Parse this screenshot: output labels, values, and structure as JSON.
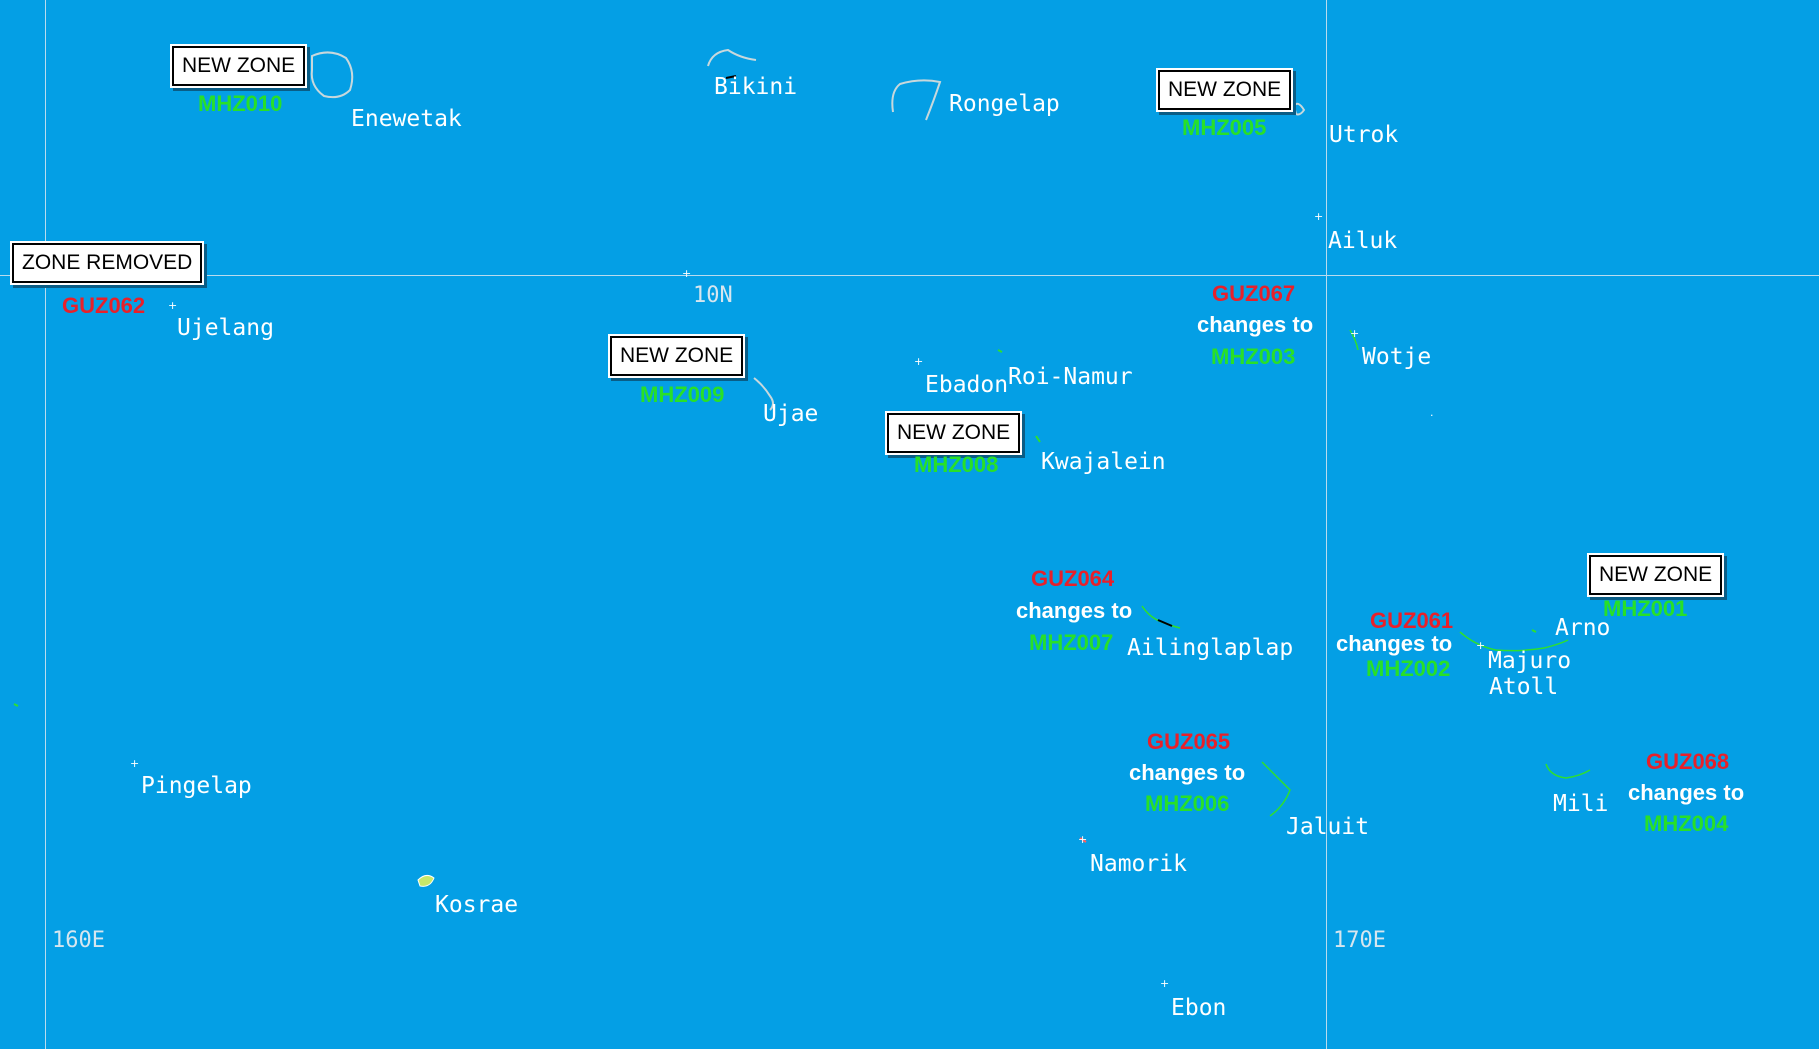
{
  "grid": {
    "lat_label": "10N",
    "lon_labels": [
      "160E",
      "170E"
    ]
  },
  "places": {
    "enewetak": "Enewetak",
    "bikini": "Bikini",
    "rongelap": "Rongelap",
    "utrok": "Utrok",
    "ailuk": "Ailuk",
    "ujelang": "Ujelang",
    "wotje": "Wotje",
    "ebadon": "Ebadon",
    "roi_namur": "Roi-Namur",
    "ujae": "Ujae",
    "kwajalein": "Kwajalein",
    "ailinglaplap": "Ailinglaplap",
    "arno": "Arno",
    "majuro": "Majuro",
    "atoll": "Atoll",
    "pingelap": "Pingelap",
    "mili": "Mili",
    "jaluit": "Jaluit",
    "namorik": "Namorik",
    "kosrae": "Kosrae",
    "ebon": "Ebon"
  },
  "zones": {
    "mhz010": {
      "label": "NEW ZONE",
      "code": "MHZ010"
    },
    "mhz005": {
      "label": "NEW ZONE",
      "code": "MHZ005"
    },
    "guz062": {
      "label": "ZONE REMOVED",
      "code": "GUZ062"
    },
    "mhz009": {
      "label": "NEW ZONE",
      "code": "MHZ009"
    },
    "mhz008": {
      "label": "NEW ZONE",
      "code": "MHZ008"
    },
    "mhz001": {
      "label": "NEW ZONE",
      "code": "MHZ001"
    },
    "guz067": {
      "old": "GUZ067",
      "changes": "changes to",
      "new": "MHZ003"
    },
    "guz064": {
      "old": "GUZ064",
      "changes": "changes to",
      "new": "MHZ007"
    },
    "guz061": {
      "old": "GUZ061",
      "changes": "changes to",
      "new": "MHZ002"
    },
    "guz065": {
      "old": "GUZ065",
      "changes": "changes to",
      "new": "MHZ006"
    },
    "guz068": {
      "old": "GUZ068",
      "changes": "changes to",
      "new": "MHZ004"
    }
  },
  "colors": {
    "ocean": "#049fe5",
    "new_code": "#28e028",
    "old_code": "#e8202a",
    "gridline": "#b9dbee"
  }
}
